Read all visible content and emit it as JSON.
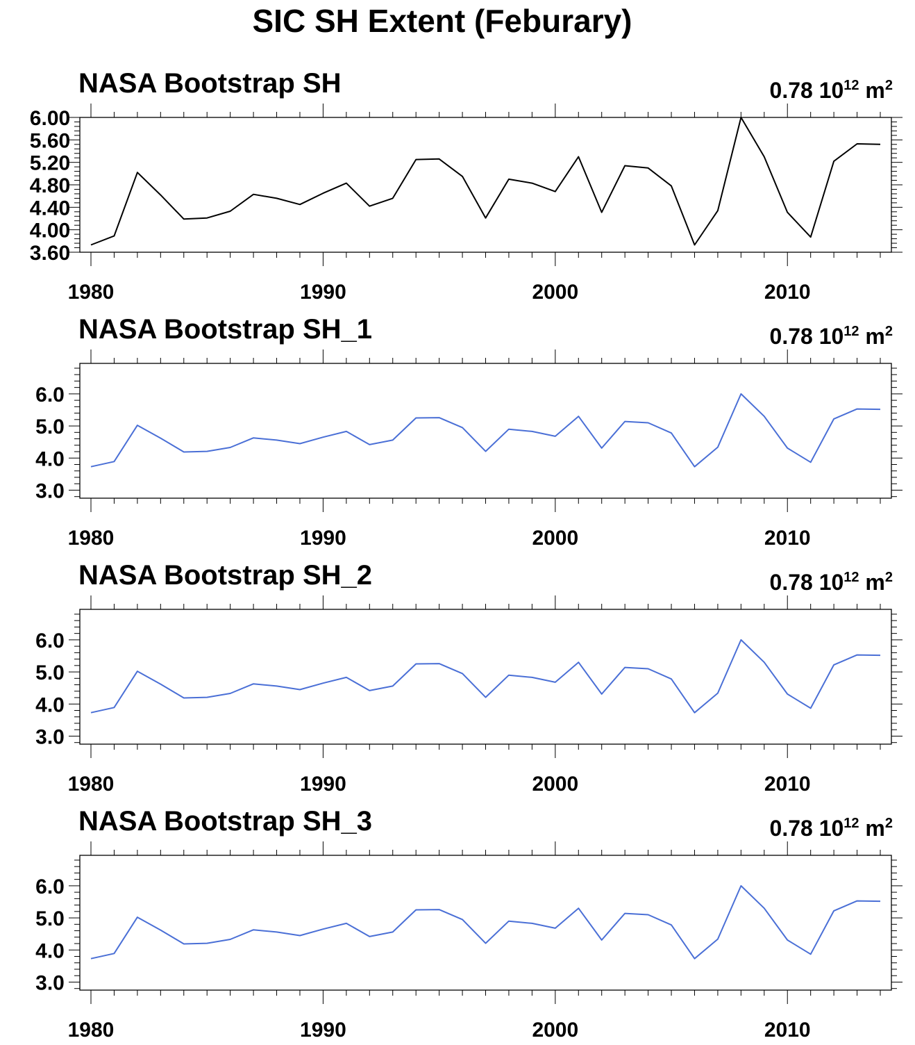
{
  "figure": {
    "title": "SIC SH Extent (Feburary)"
  },
  "chart_data": [
    {
      "type": "line",
      "title": "NASA Bootstrap SH",
      "annotation": {
        "value": "0.78",
        "base": "10",
        "exponent": "12",
        "unit": "m",
        "unit_exponent": "2"
      },
      "x": [
        1980,
        1981,
        1982,
        1983,
        1984,
        1985,
        1986,
        1987,
        1988,
        1989,
        1990,
        1991,
        1992,
        1993,
        1994,
        1995,
        1996,
        1997,
        1998,
        1999,
        2000,
        2001,
        2002,
        2003,
        2004,
        2005,
        2006,
        2007,
        2008,
        2009,
        2010,
        2011,
        2012,
        2013,
        2014
      ],
      "series": [
        {
          "color": "#000000",
          "values": [
            3.73,
            3.89,
            5.02,
            4.62,
            4.19,
            4.21,
            4.33,
            4.63,
            4.56,
            4.45,
            4.65,
            4.83,
            4.42,
            4.56,
            5.25,
            5.26,
            4.95,
            4.21,
            4.9,
            4.83,
            4.68,
            5.3,
            4.31,
            5.14,
            5.1,
            4.78,
            3.73,
            4.34,
            6.0,
            5.3,
            4.31,
            3.87,
            5.22,
            5.53,
            5.52
          ]
        }
      ],
      "xlim": [
        1980,
        2014
      ],
      "ylim": [
        3.6,
        6.0
      ],
      "xticks": [
        "1980",
        "1990",
        "2000",
        "2010"
      ],
      "yticks": [
        "6.00",
        "5.60",
        "5.20",
        "4.80",
        "4.40",
        "4.00",
        "3.60"
      ],
      "grid": false
    },
    {
      "type": "line",
      "title": "NASA Bootstrap SH_1",
      "annotation": {
        "value": "0.78",
        "base": "10",
        "exponent": "12",
        "unit": "m",
        "unit_exponent": "2"
      },
      "x": [
        1980,
        1981,
        1982,
        1983,
        1984,
        1985,
        1986,
        1987,
        1988,
        1989,
        1990,
        1991,
        1992,
        1993,
        1994,
        1995,
        1996,
        1997,
        1998,
        1999,
        2000,
        2001,
        2002,
        2003,
        2004,
        2005,
        2006,
        2007,
        2008,
        2009,
        2010,
        2011,
        2012,
        2013,
        2014
      ],
      "series": [
        {
          "color": "#4a6fd6",
          "values": [
            3.73,
            3.89,
            5.02,
            4.62,
            4.19,
            4.21,
            4.33,
            4.63,
            4.56,
            4.45,
            4.65,
            4.83,
            4.42,
            4.56,
            5.25,
            5.26,
            4.95,
            4.21,
            4.9,
            4.83,
            4.68,
            5.3,
            4.31,
            5.14,
            5.1,
            4.78,
            3.73,
            4.34,
            6.0,
            5.3,
            4.31,
            3.87,
            5.22,
            5.53,
            5.52
          ]
        }
      ],
      "xlim": [
        1980,
        2014
      ],
      "ylim": [
        2.75,
        6.95
      ],
      "xticks": [
        "1980",
        "1990",
        "2000",
        "2010"
      ],
      "yticks": [
        "6.0",
        "5.0",
        "4.0",
        "3.0"
      ],
      "grid": false
    },
    {
      "type": "line",
      "title": "NASA Bootstrap SH_2",
      "annotation": {
        "value": "0.78",
        "base": "10",
        "exponent": "12",
        "unit": "m",
        "unit_exponent": "2"
      },
      "x": [
        1980,
        1981,
        1982,
        1983,
        1984,
        1985,
        1986,
        1987,
        1988,
        1989,
        1990,
        1991,
        1992,
        1993,
        1994,
        1995,
        1996,
        1997,
        1998,
        1999,
        2000,
        2001,
        2002,
        2003,
        2004,
        2005,
        2006,
        2007,
        2008,
        2009,
        2010,
        2011,
        2012,
        2013,
        2014
      ],
      "series": [
        {
          "color": "#4a6fd6",
          "values": [
            3.73,
            3.89,
            5.02,
            4.62,
            4.19,
            4.21,
            4.33,
            4.63,
            4.56,
            4.45,
            4.65,
            4.83,
            4.42,
            4.56,
            5.25,
            5.26,
            4.95,
            4.21,
            4.9,
            4.83,
            4.68,
            5.3,
            4.31,
            5.14,
            5.1,
            4.78,
            3.73,
            4.34,
            6.0,
            5.3,
            4.31,
            3.87,
            5.22,
            5.53,
            5.52
          ]
        }
      ],
      "xlim": [
        1980,
        2014
      ],
      "ylim": [
        2.75,
        6.95
      ],
      "xticks": [
        "1980",
        "1990",
        "2000",
        "2010"
      ],
      "yticks": [
        "6.0",
        "5.0",
        "4.0",
        "3.0"
      ],
      "grid": false
    },
    {
      "type": "line",
      "title": "NASA Bootstrap SH_3",
      "annotation": {
        "value": "0.78",
        "base": "10",
        "exponent": "12",
        "unit": "m",
        "unit_exponent": "2"
      },
      "x": [
        1980,
        1981,
        1982,
        1983,
        1984,
        1985,
        1986,
        1987,
        1988,
        1989,
        1990,
        1991,
        1992,
        1993,
        1994,
        1995,
        1996,
        1997,
        1998,
        1999,
        2000,
        2001,
        2002,
        2003,
        2004,
        2005,
        2006,
        2007,
        2008,
        2009,
        2010,
        2011,
        2012,
        2013,
        2014
      ],
      "series": [
        {
          "color": "#4a6fd6",
          "values": [
            3.73,
            3.89,
            5.02,
            4.62,
            4.19,
            4.21,
            4.33,
            4.63,
            4.56,
            4.45,
            4.65,
            4.83,
            4.42,
            4.56,
            5.25,
            5.26,
            4.95,
            4.21,
            4.9,
            4.83,
            4.68,
            5.3,
            4.31,
            5.14,
            5.1,
            4.78,
            3.73,
            4.34,
            6.0,
            5.3,
            4.31,
            3.87,
            5.22,
            5.53,
            5.52
          ]
        }
      ],
      "xlim": [
        1980,
        2014
      ],
      "ylim": [
        2.75,
        6.95
      ],
      "xticks": [
        "1980",
        "1990",
        "2000",
        "2010"
      ],
      "yticks": [
        "6.0",
        "5.0",
        "4.0",
        "3.0"
      ],
      "grid": false
    }
  ]
}
